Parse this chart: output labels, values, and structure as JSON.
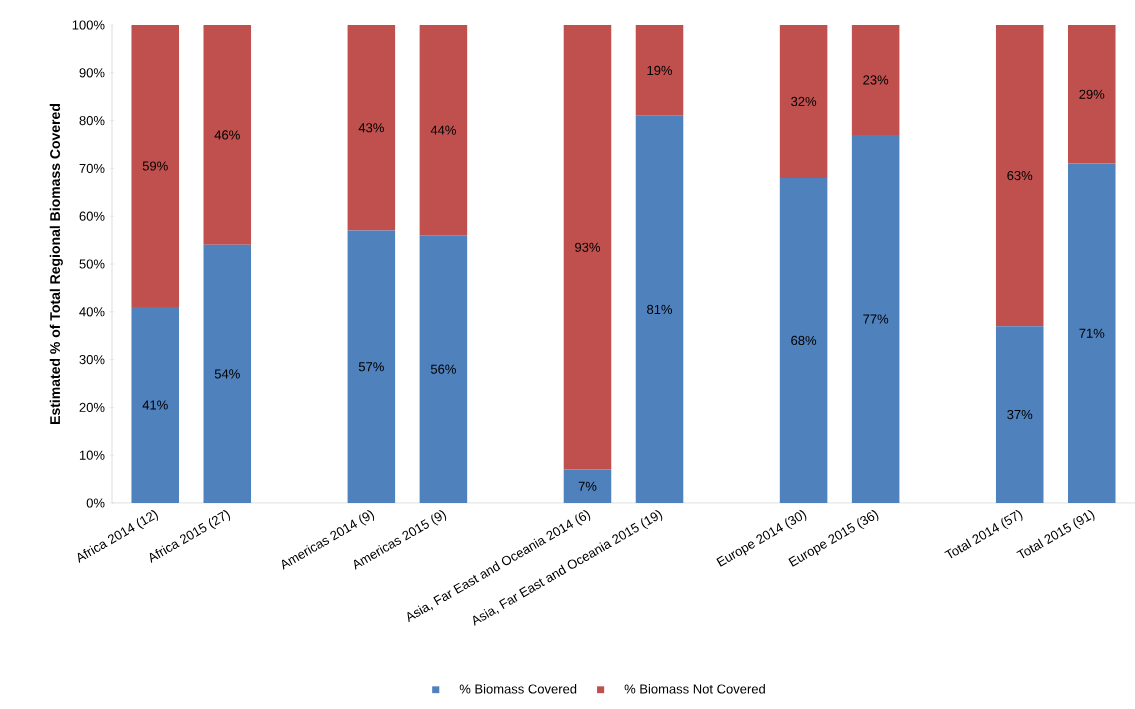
{
  "chart_data": {
    "type": "bar",
    "stacked": true,
    "ylabel": "Estimated % of Total Regional Biomass Covered",
    "categories": [
      "Africa 2014 (12)",
      "Africa 2015 (27)",
      null,
      "Americas 2014 (9)",
      "Americas 2015 (9)",
      null,
      "Asia, Far East and Oceania 2014 (6)",
      "Asia, Far East and Oceania 2015 (19)",
      null,
      "Europe 2014 (30)",
      "Europe 2015 (36)",
      null,
      "Total 2014 (57)",
      "Total 2015 (91)"
    ],
    "series": [
      {
        "name": "% Biomass Covered",
        "color": "#4f81bd",
        "values": [
          41,
          54,
          null,
          57,
          56,
          null,
          7,
          81,
          null,
          68,
          77,
          null,
          37,
          71
        ],
        "value_labels": [
          "41%",
          "54%",
          null,
          "57%",
          "56%",
          null,
          "7%",
          "81%",
          null,
          "68%",
          "77%",
          null,
          "37%",
          "71%"
        ]
      },
      {
        "name": "% Biomass Not Covered",
        "color": "#c0504d",
        "values": [
          59,
          46,
          null,
          43,
          44,
          null,
          93,
          19,
          null,
          32,
          23,
          null,
          63,
          29
        ],
        "value_labels": [
          "59%",
          "46%",
          null,
          "43%",
          "44%",
          null,
          "93%",
          "19%",
          null,
          "32%",
          "23%",
          null,
          "63%",
          "29%"
        ]
      }
    ],
    "ylim": [
      0,
      100
    ],
    "yticks": [
      {
        "value": 0,
        "label": "0%"
      },
      {
        "value": 10,
        "label": "10%"
      },
      {
        "value": 20,
        "label": "20%"
      },
      {
        "value": 30,
        "label": "30%"
      },
      {
        "value": 40,
        "label": "40%"
      },
      {
        "value": 50,
        "label": "50%"
      },
      {
        "value": 60,
        "label": "60%"
      },
      {
        "value": 70,
        "label": "70%"
      },
      {
        "value": 80,
        "label": "80%"
      },
      {
        "value": 90,
        "label": "90%"
      },
      {
        "value": 100,
        "label": "100%"
      }
    ],
    "legend": "bottom",
    "grid": false
  }
}
